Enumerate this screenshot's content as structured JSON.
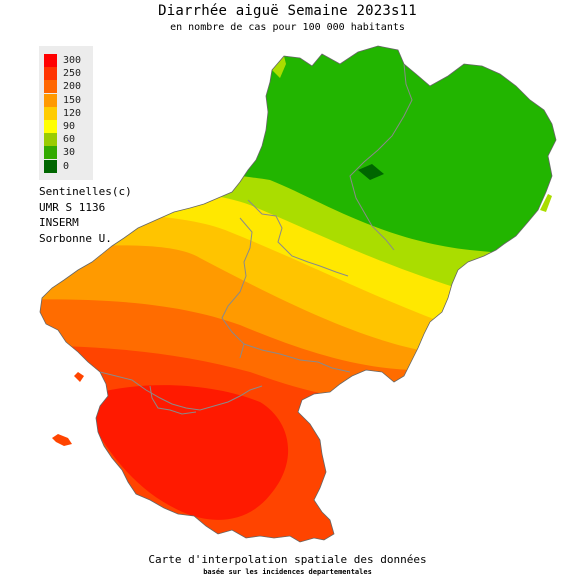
{
  "title": "Diarrhée aiguë Semaine 2023s11",
  "subtitle": "en nombre de cas pour 100 000 habitants",
  "legend": [
    {
      "label": "300",
      "color": "#ff0000"
    },
    {
      "label": "250",
      "color": "#ff3300"
    },
    {
      "label": "200",
      "color": "#ff6600"
    },
    {
      "label": "150",
      "color": "#ff9900"
    },
    {
      "label": "120",
      "color": "#ffcc00"
    },
    {
      "label": "90",
      "color": "#ffff00"
    },
    {
      "label": "60",
      "color": "#99cc00"
    },
    {
      "label": "30",
      "color": "#33aa00"
    },
    {
      "label": "0",
      "color": "#006600"
    }
  ],
  "credits": [
    "Sentinelles(c)",
    "UMR S 1136",
    "INSERM",
    "Sorbonne U."
  ],
  "footer": "Carte d'interpolation spatiale des données",
  "footer_sub": "basée sur les incidences departementales",
  "colors": {
    "north_green": "#22b500",
    "light_green": "#aadd00",
    "yellow": "#ffe800",
    "yellow_orange": "#ffc400",
    "orange": "#ff9a00",
    "orange_red": "#ff6c00",
    "red_orange": "#ff4400",
    "red": "#ff1a00",
    "border": "#8a8a8a"
  }
}
